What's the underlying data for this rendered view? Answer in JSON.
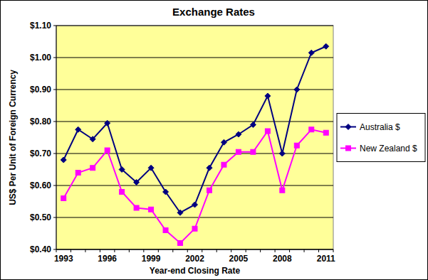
{
  "chart_data": {
    "type": "line",
    "title": "Exchange Rates",
    "x_label": "Year-end Closing Rate",
    "y_label": "US$ Per Unit of Foreign Currency",
    "categories": [
      "1993",
      null,
      null,
      "1996",
      null,
      null,
      "1999",
      null,
      null,
      "2002",
      null,
      null,
      "2005",
      null,
      null,
      "2008",
      null,
      null,
      "2011"
    ],
    "series": [
      {
        "name": "Australia $",
        "color": "#000080",
        "marker": "diamond",
        "values": [
          0.68,
          0.775,
          0.745,
          0.795,
          0.65,
          0.61,
          0.655,
          0.58,
          0.515,
          0.54,
          0.655,
          0.735,
          0.76,
          0.79,
          0.88,
          0.7,
          0.9,
          1.015,
          1.035
        ]
      },
      {
        "name": "New Zealand $",
        "color": "#ff00ff",
        "marker": "square",
        "values": [
          0.56,
          0.64,
          0.655,
          0.71,
          0.58,
          0.53,
          0.525,
          0.46,
          0.42,
          0.465,
          0.585,
          0.665,
          0.705,
          0.705,
          0.77,
          0.585,
          0.725,
          0.775,
          0.765
        ]
      }
    ],
    "ylim": [
      0.4,
      1.1
    ],
    "yticks": [
      {
        "value": 0.4,
        "label": "$0.40"
      },
      {
        "value": 0.5,
        "label": "$0.50"
      },
      {
        "value": 0.6,
        "label": "$0.60"
      },
      {
        "value": 0.7,
        "label": "$0.70"
      },
      {
        "value": 0.8,
        "label": "$0.80"
      },
      {
        "value": 0.9,
        "label": "$0.90"
      },
      {
        "value": 1.0,
        "label": "$1.00"
      },
      {
        "value": 1.1,
        "label": "$1.10"
      }
    ],
    "grid": true,
    "legend": "right"
  }
}
